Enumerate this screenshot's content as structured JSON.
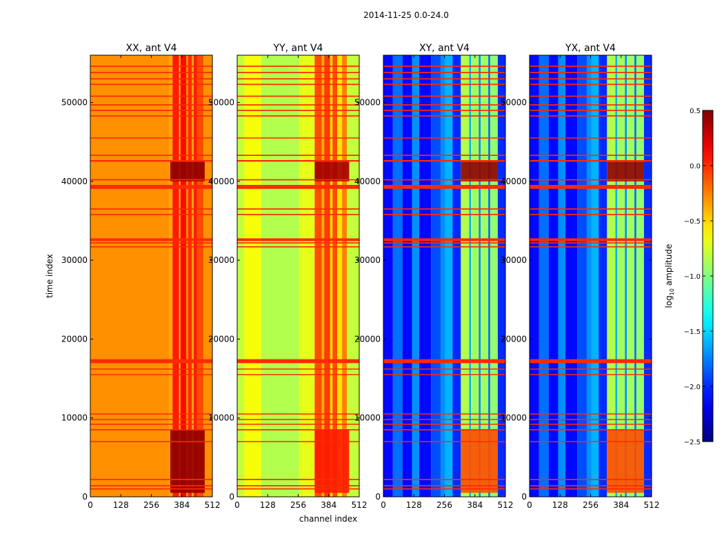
{
  "chart_data": {
    "type": "heatmap",
    "title": "2014-11-25 0.0-24.0",
    "xlabel": "channel index",
    "ylabel": "time index",
    "xlim": [
      0,
      512
    ],
    "ylim": [
      0,
      56000
    ],
    "xticks": [
      0,
      128,
      256,
      384,
      512
    ],
    "yticks": [
      0,
      10000,
      20000,
      30000,
      40000,
      50000
    ],
    "panels": [
      {
        "name": "XX, ant V4",
        "bands": [
          {
            "x": [
              0,
              330
            ],
            "value": -0.3
          },
          {
            "x": [
              330,
              345
            ],
            "value": -0.35
          },
          {
            "x": [
              345,
              372
            ],
            "value": 0.05
          },
          {
            "x": [
              372,
              378
            ],
            "value": -0.4
          },
          {
            "x": [
              378,
              402
            ],
            "value": 0.1
          },
          {
            "x": [
              402,
              410
            ],
            "value": -0.3
          },
          {
            "x": [
              410,
              426
            ],
            "value": 0.0
          },
          {
            "x": [
              426,
              434
            ],
            "value": -0.35
          },
          {
            "x": [
              434,
              448
            ],
            "value": 0.05
          },
          {
            "x": [
              448,
              475
            ],
            "value": -0.1
          },
          {
            "x": [
              475,
              512
            ],
            "value": -0.3
          }
        ],
        "hot": [
          {
            "t": [
              500,
              8500
            ],
            "x": [
              335,
              480
            ],
            "value": 0.45
          },
          {
            "t": [
              40000,
              42500
            ],
            "x": [
              335,
              480
            ],
            "value": 0.45
          }
        ]
      },
      {
        "name": "YY, ant V4",
        "bands": [
          {
            "x": [
              0,
              30
            ],
            "value": -0.8
          },
          {
            "x": [
              30,
              100
            ],
            "value": -0.65
          },
          {
            "x": [
              100,
              260
            ],
            "value": -0.85
          },
          {
            "x": [
              260,
              325
            ],
            "value": -0.7
          },
          {
            "x": [
              325,
              355
            ],
            "value": -0.1
          },
          {
            "x": [
              355,
              365
            ],
            "value": -0.4
          },
          {
            "x": [
              365,
              390
            ],
            "value": -0.05
          },
          {
            "x": [
              390,
              400
            ],
            "value": -0.5
          },
          {
            "x": [
              400,
              420
            ],
            "value": -0.1
          },
          {
            "x": [
              420,
              440
            ],
            "value": -0.55
          },
          {
            "x": [
              440,
              460
            ],
            "value": -0.25
          },
          {
            "x": [
              460,
              512
            ],
            "value": -0.8
          }
        ],
        "hot": [
          {
            "t": [
              500,
              8500
            ],
            "x": [
              325,
              470
            ],
            "value": 0.05
          },
          {
            "t": [
              40000,
              42500
            ],
            "x": [
              325,
              470
            ],
            "value": 0.4
          }
        ]
      },
      {
        "name": "XY, ant V4",
        "bands": [
          {
            "x": [
              0,
              40
            ],
            "value": -2.1
          },
          {
            "x": [
              40,
              80
            ],
            "value": -1.8
          },
          {
            "x": [
              80,
              120
            ],
            "value": -2.1
          },
          {
            "x": [
              120,
              150
            ],
            "value": -1.7
          },
          {
            "x": [
              150,
              200
            ],
            "value": -2.1
          },
          {
            "x": [
              200,
              240
            ],
            "value": -1.9
          },
          {
            "x": [
              240,
              260
            ],
            "value": -1.7
          },
          {
            "x": [
              260,
              290
            ],
            "value": -1.6
          },
          {
            "x": [
              290,
              325
            ],
            "value": -2.0
          },
          {
            "x": [
              325,
              360
            ],
            "value": -0.85
          },
          {
            "x": [
              360,
              368
            ],
            "value": -1.6
          },
          {
            "x": [
              368,
              400
            ],
            "value": -0.9
          },
          {
            "x": [
              400,
              408
            ],
            "value": -1.7
          },
          {
            "x": [
              408,
              440
            ],
            "value": -0.9
          },
          {
            "x": [
              440,
              448
            ],
            "value": -1.8
          },
          {
            "x": [
              448,
              480
            ],
            "value": -0.95
          },
          {
            "x": [
              480,
              512
            ],
            "value": -2.0
          }
        ],
        "hot": [
          {
            "t": [
              500,
              8500
            ],
            "x": [
              325,
              480
            ],
            "value": -0.1
          },
          {
            "t": [
              40000,
              42500
            ],
            "x": [
              325,
              480
            ],
            "value": 0.45
          }
        ]
      },
      {
        "name": "YX, ant V4",
        "bands": [
          {
            "x": [
              0,
              40
            ],
            "value": -2.1
          },
          {
            "x": [
              40,
              80
            ],
            "value": -1.8
          },
          {
            "x": [
              80,
              120
            ],
            "value": -2.1
          },
          {
            "x": [
              120,
              150
            ],
            "value": -1.7
          },
          {
            "x": [
              150,
              200
            ],
            "value": -2.1
          },
          {
            "x": [
              200,
              240
            ],
            "value": -1.9
          },
          {
            "x": [
              240,
              260
            ],
            "value": -1.7
          },
          {
            "x": [
              260,
              290
            ],
            "value": -1.6
          },
          {
            "x": [
              290,
              325
            ],
            "value": -2.0
          },
          {
            "x": [
              325,
              360
            ],
            "value": -0.85
          },
          {
            "x": [
              360,
              368
            ],
            "value": -1.6
          },
          {
            "x": [
              368,
              400
            ],
            "value": -0.9
          },
          {
            "x": [
              400,
              408
            ],
            "value": -1.7
          },
          {
            "x": [
              408,
              440
            ],
            "value": -0.9
          },
          {
            "x": [
              440,
              448
            ],
            "value": -1.8
          },
          {
            "x": [
              448,
              480
            ],
            "value": -0.95
          },
          {
            "x": [
              480,
              512
            ],
            "value": -2.0
          }
        ],
        "hot": [
          {
            "t": [
              500,
              8500
            ],
            "x": [
              325,
              480
            ],
            "value": -0.1
          },
          {
            "t": [
              40000,
              42500
            ],
            "x": [
              325,
              480
            ],
            "value": 0.45
          }
        ]
      }
    ],
    "flagged_rows": [
      {
        "t": 1000,
        "width": 150,
        "value": 0.0
      },
      {
        "t": 1400,
        "width": 150,
        "value": 0.0
      },
      {
        "t": 2200,
        "width": 150,
        "value": 0.0
      },
      {
        "t": 7000,
        "width": 100,
        "value": 0.0
      },
      {
        "t": 8500,
        "width": 150,
        "value": 0.0
      },
      {
        "t": 9200,
        "width": 100,
        "value": 0.0
      },
      {
        "t": 9800,
        "width": 100,
        "value": 0.0
      },
      {
        "t": 10500,
        "width": 100,
        "value": 0.0
      },
      {
        "t": 15500,
        "width": 100,
        "value": 0.0
      },
      {
        "t": 16200,
        "width": 100,
        "value": 0.0
      },
      {
        "t": 17200,
        "width": 500,
        "value": 0.0
      },
      {
        "t": 31700,
        "width": 150,
        "value": 0.0
      },
      {
        "t": 32200,
        "width": 150,
        "value": 0.0
      },
      {
        "t": 32600,
        "width": 350,
        "value": 0.0
      },
      {
        "t": 35800,
        "width": 150,
        "value": 0.0
      },
      {
        "t": 36500,
        "width": 150,
        "value": 0.0
      },
      {
        "t": 39300,
        "width": 500,
        "value": 0.0
      },
      {
        "t": 40200,
        "width": 150,
        "value": 0.0
      },
      {
        "t": 42600,
        "width": 200,
        "value": 0.0
      },
      {
        "t": 43300,
        "width": 150,
        "value": 0.0
      },
      {
        "t": 45500,
        "width": 100,
        "value": 0.0
      },
      {
        "t": 48300,
        "width": 150,
        "value": 0.0
      },
      {
        "t": 49000,
        "width": 150,
        "value": 0.0
      },
      {
        "t": 49700,
        "width": 150,
        "value": 0.0
      },
      {
        "t": 50800,
        "width": 150,
        "value": 0.0
      },
      {
        "t": 52300,
        "width": 150,
        "value": 0.0
      },
      {
        "t": 53000,
        "width": 150,
        "value": 0.0
      },
      {
        "t": 53800,
        "width": 150,
        "value": 0.0
      },
      {
        "t": 54600,
        "width": 150,
        "value": 0.0
      }
    ],
    "colorbar": {
      "label": "log10 amplitude",
      "label_base": "log",
      "label_sub": "10",
      "label_rest": " amplitude",
      "range": [
        -2.5,
        0.5
      ],
      "ticks": [
        0.5,
        0.0,
        -0.5,
        -1.0,
        -1.5,
        -2.0,
        -2.5
      ],
      "tick_labels": [
        "0.5",
        "0.0",
        "−0.5",
        "−1.0",
        "−1.5",
        "−2.0",
        "−2.5"
      ],
      "colormap": "jet"
    }
  }
}
